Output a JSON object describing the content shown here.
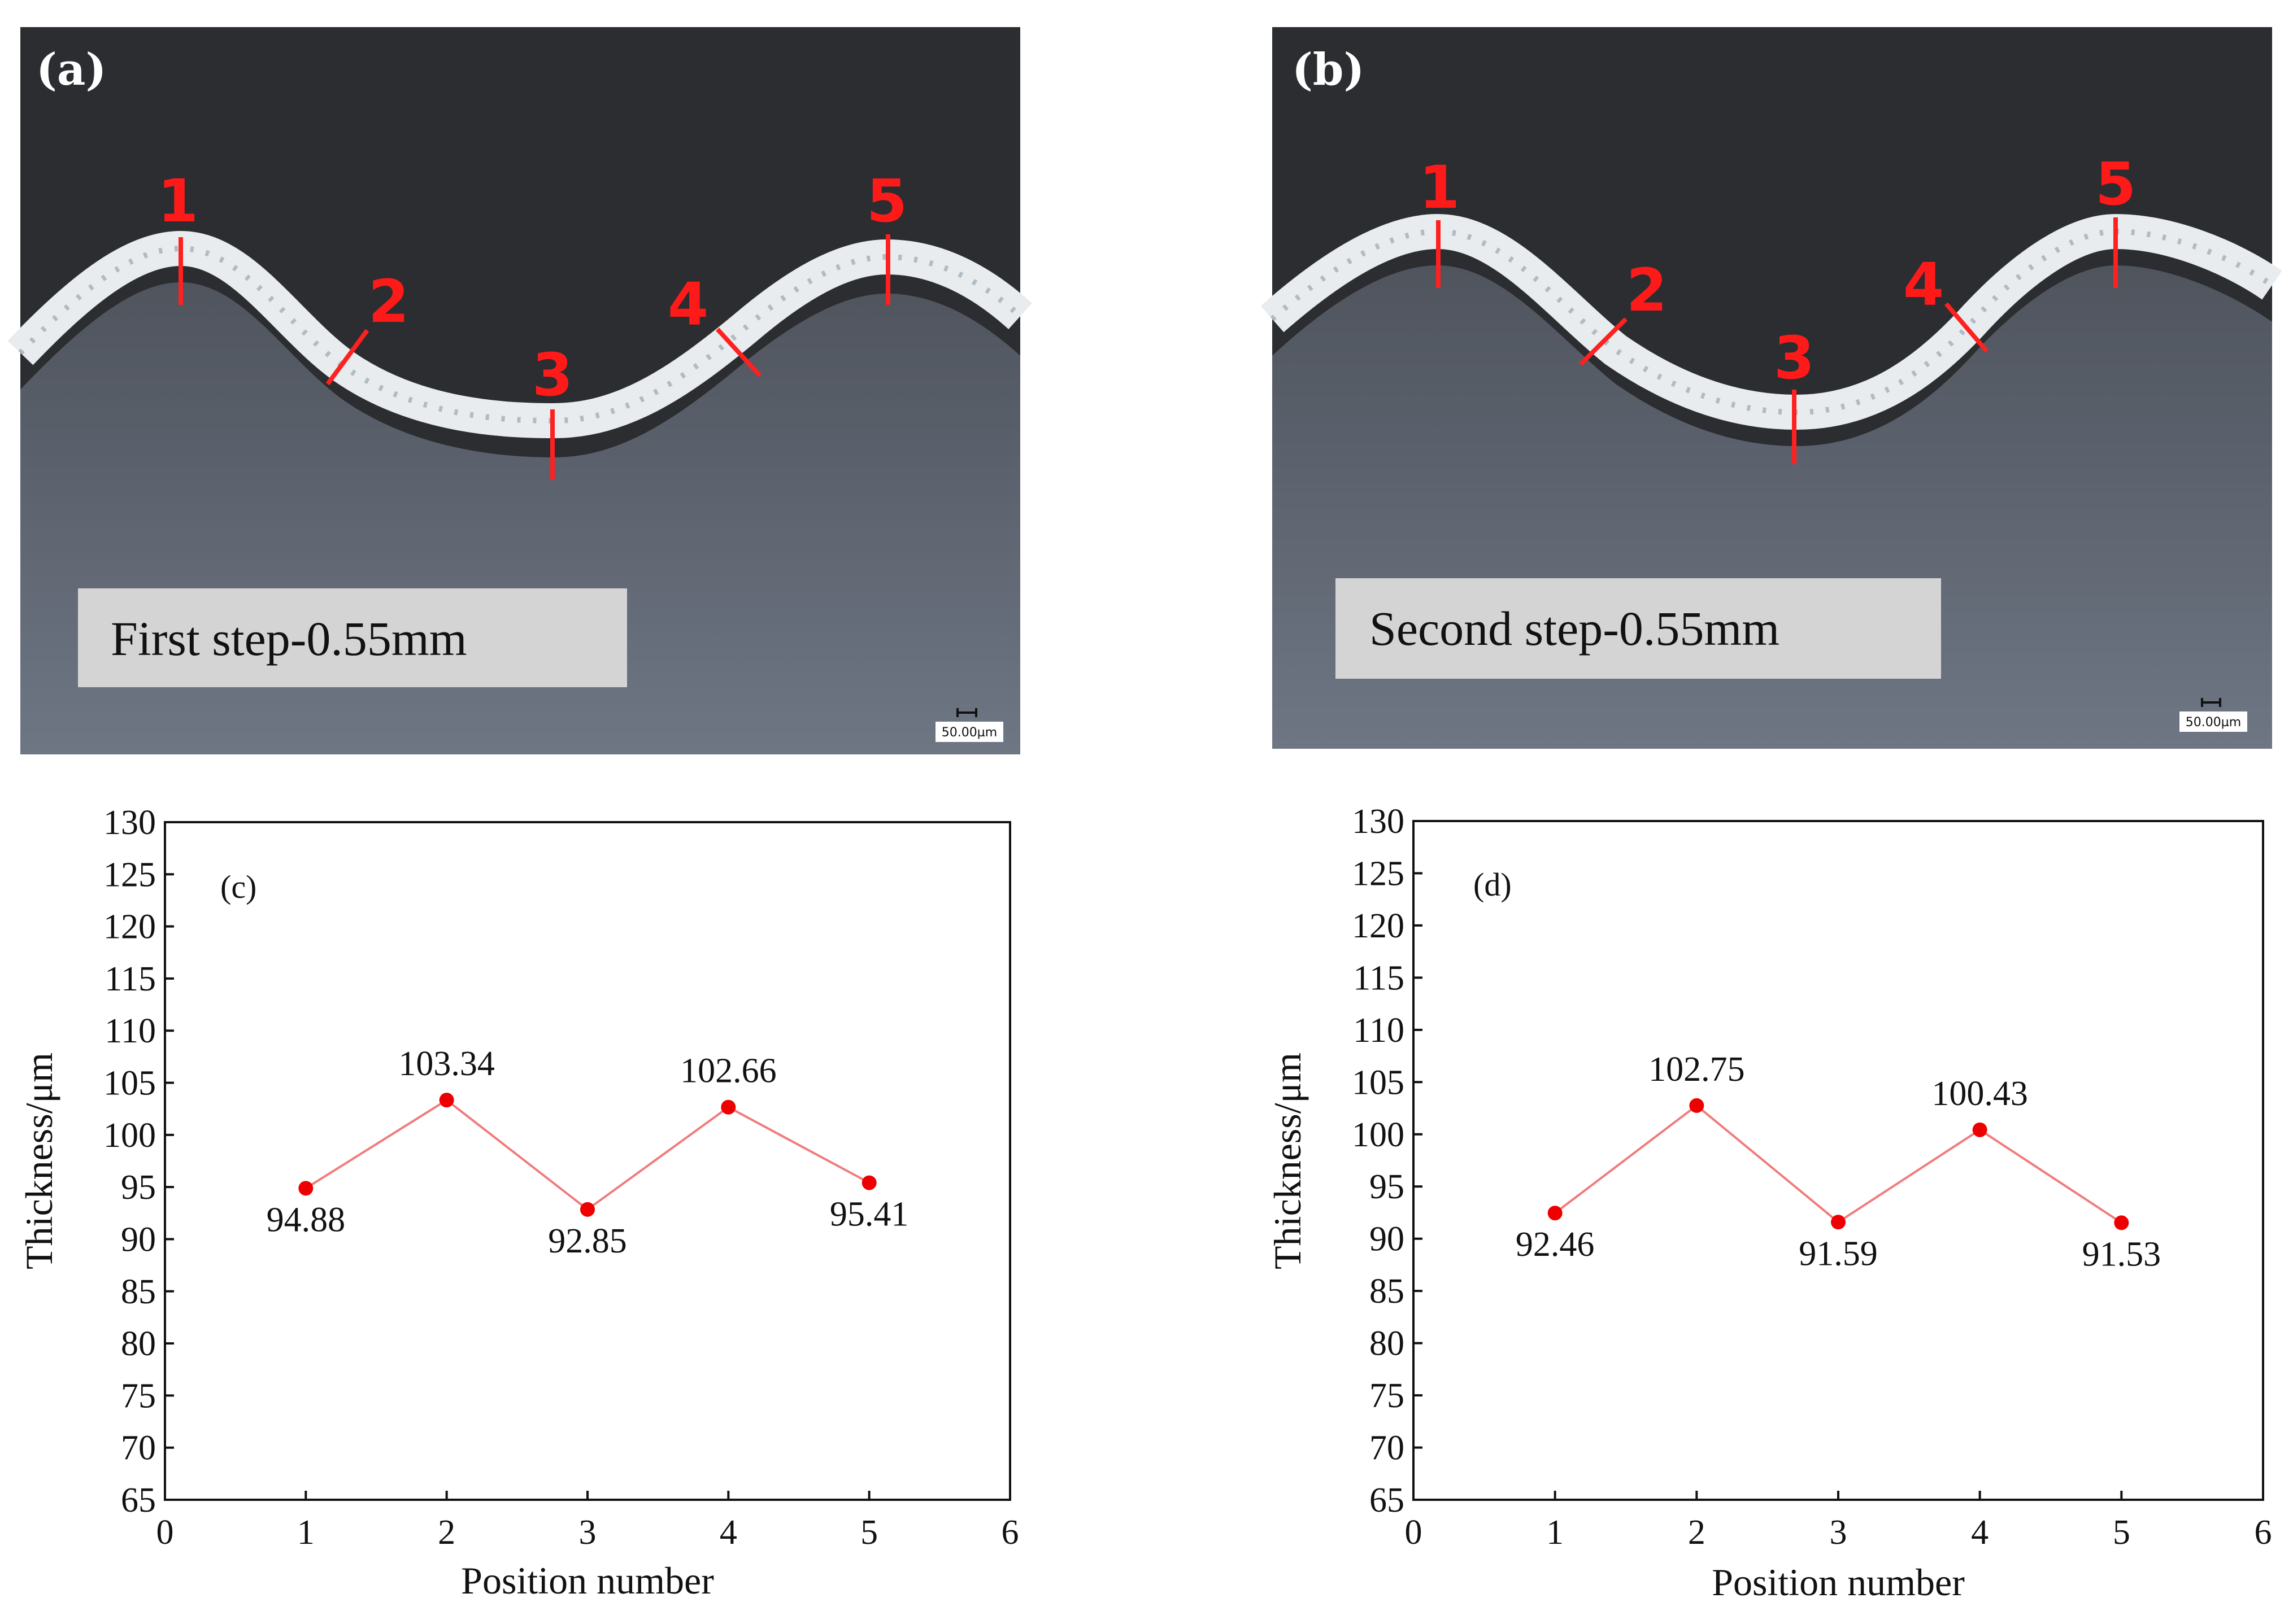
{
  "micrographs": [
    {
      "panel_label": "(a)",
      "caption": "First step-0.55mm",
      "scale_bar": "50.00µm",
      "position_labels": [
        "1",
        "2",
        "3",
        "4",
        "5"
      ],
      "colors": {
        "background": "#2b2d31",
        "substrate": "#6b7280",
        "coating": "#e8ecef",
        "marker": "#ff2020"
      }
    },
    {
      "panel_label": "(b)",
      "caption": "Second step-0.55mm",
      "scale_bar": "50.00µm",
      "position_labels": [
        "1",
        "2",
        "3",
        "4",
        "5"
      ],
      "colors": {
        "background": "#2b2d31",
        "substrate": "#6b7280",
        "coating": "#e8ecef",
        "marker": "#ff2020"
      }
    }
  ],
  "chart_data": [
    {
      "type": "line",
      "panel_label": "(c)",
      "x": [
        1,
        2,
        3,
        4,
        5
      ],
      "series": [
        {
          "name": "Thickness",
          "values": [
            94.88,
            103.34,
            92.85,
            102.66,
            95.41
          ],
          "color": "#ee0000"
        }
      ],
      "data_labels": [
        "94.88",
        "103.34",
        "92.85",
        "102.66",
        "95.41"
      ],
      "label_positions": [
        "below",
        "above",
        "below",
        "above",
        "below"
      ],
      "xlabel": "Position number",
      "ylabel": "Thickness/μm",
      "xlim": [
        0,
        6
      ],
      "ylim": [
        65,
        130
      ],
      "xticks": [
        0,
        1,
        2,
        3,
        4,
        5,
        6
      ],
      "yticks": [
        65,
        70,
        75,
        80,
        85,
        90,
        95,
        100,
        105,
        110,
        115,
        120,
        125,
        130
      ],
      "grid": false
    },
    {
      "type": "line",
      "panel_label": "(d)",
      "x": [
        1,
        2,
        3,
        4,
        5
      ],
      "series": [
        {
          "name": "Thickness",
          "values": [
            92.46,
            102.75,
            91.59,
            100.43,
            91.53
          ],
          "color": "#ee0000"
        }
      ],
      "data_labels": [
        "92.46",
        "102.75",
        "91.59",
        "100.43",
        "91.53"
      ],
      "label_positions": [
        "below",
        "above",
        "below",
        "above",
        "below"
      ],
      "xlabel": "Position number",
      "ylabel": "Thickness/μm",
      "xlim": [
        0,
        6
      ],
      "ylim": [
        65,
        130
      ],
      "xticks": [
        0,
        1,
        2,
        3,
        4,
        5,
        6
      ],
      "yticks": [
        65,
        70,
        75,
        80,
        85,
        90,
        95,
        100,
        105,
        110,
        115,
        120,
        125,
        130
      ],
      "grid": false
    }
  ]
}
